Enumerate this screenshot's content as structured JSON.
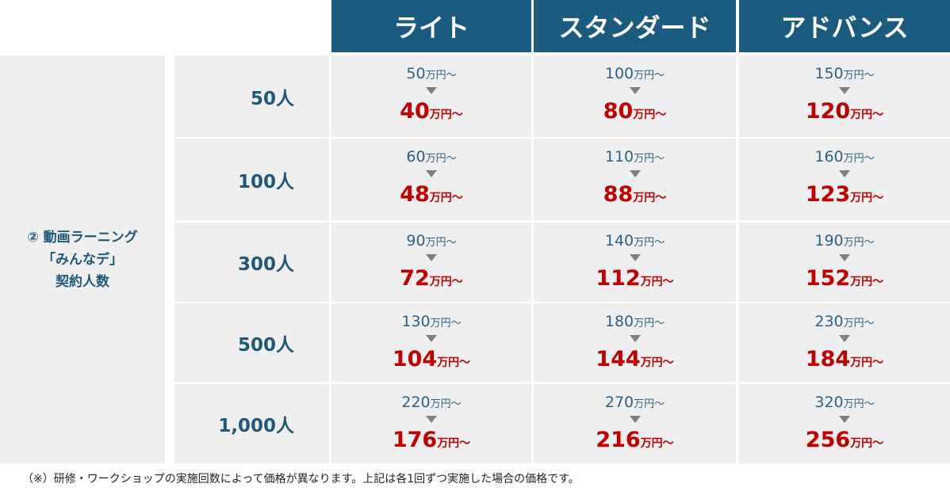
{
  "table": {
    "columns": [
      "ライト",
      "スタンダード",
      "アドバンス"
    ],
    "row_group": "② 動画ラーニング\n「みんなデ」\n契約人数",
    "rows": [
      {
        "label": "50人",
        "cells": [
          {
            "before": "50",
            "before_unit": "万円～",
            "after": "40",
            "after_unit": "万円～"
          },
          {
            "before": "100",
            "before_unit": "万円～",
            "after": "80",
            "after_unit": "万円～"
          },
          {
            "before": "150",
            "before_unit": "万円～",
            "after": "120",
            "after_unit": "万円～"
          }
        ]
      },
      {
        "label": "100人",
        "cells": [
          {
            "before": "60",
            "before_unit": "万円～",
            "after": "48",
            "after_unit": "万円～"
          },
          {
            "before": "110",
            "before_unit": "万円～",
            "after": "88",
            "after_unit": "万円～"
          },
          {
            "before": "160",
            "before_unit": "万円～",
            "after": "123",
            "after_unit": "万円～"
          }
        ]
      },
      {
        "label": "300人",
        "cells": [
          {
            "before": "90",
            "before_unit": "万円～",
            "after": "72",
            "after_unit": "万円～"
          },
          {
            "before": "140",
            "before_unit": "万円～",
            "after": "112",
            "after_unit": "万円～"
          },
          {
            "before": "190",
            "before_unit": "万円～",
            "after": "152",
            "after_unit": "万円～"
          }
        ]
      },
      {
        "label": "500人",
        "cells": [
          {
            "before": "130",
            "before_unit": "万円～",
            "after": "104",
            "after_unit": "万円～"
          },
          {
            "before": "180",
            "before_unit": "万円～",
            "after": "144",
            "after_unit": "万円～"
          },
          {
            "before": "230",
            "before_unit": "万円～",
            "after": "184",
            "after_unit": "万円～"
          }
        ]
      },
      {
        "label": "1,000人",
        "cells": [
          {
            "before": "220",
            "before_unit": "万円～",
            "after": "176",
            "after_unit": "万円～"
          },
          {
            "before": "270",
            "before_unit": "万円～",
            "after": "216",
            "after_unit": "万円～"
          },
          {
            "before": "320",
            "before_unit": "万円～",
            "after": "256",
            "after_unit": "万円～"
          }
        ]
      }
    ]
  },
  "footnote": "（※）研修・ワークショップの実施回数によって価格が異なります。上記は各1回ずつ実施した場合の価格です。"
}
